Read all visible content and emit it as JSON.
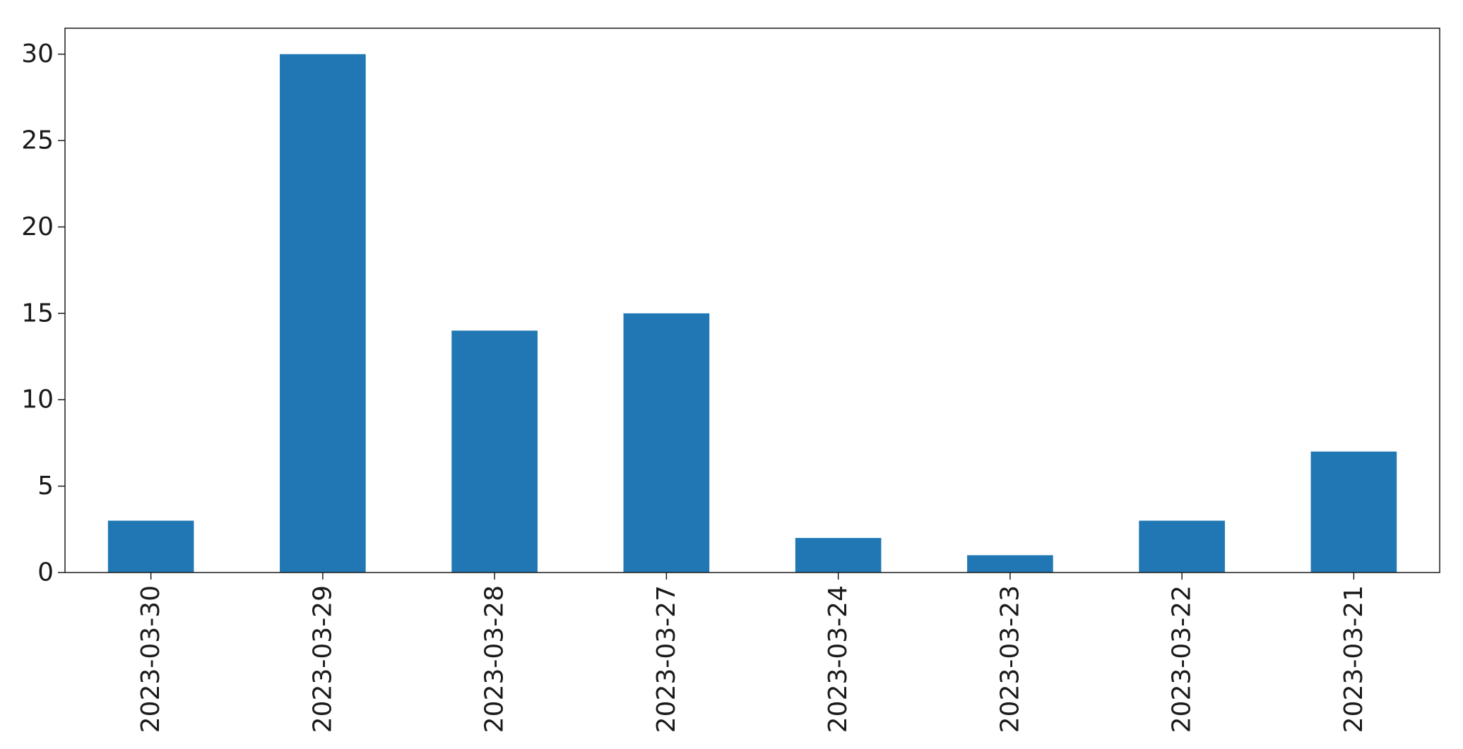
{
  "chart_data": {
    "type": "bar",
    "categories": [
      "2023-03-30",
      "2023-03-29",
      "2023-03-28",
      "2023-03-27",
      "2023-03-24",
      "2023-03-23",
      "2023-03-22",
      "2023-03-21"
    ],
    "series": [
      {
        "values": [
          3,
          30,
          14,
          15,
          2,
          1,
          3,
          7
        ],
        "color": "#2077b4"
      }
    ],
    "title": "",
    "xlabel": "",
    "ylabel": "",
    "ylim": [
      0,
      31.5
    ],
    "yticks": [
      0,
      5,
      10,
      15,
      20,
      25,
      30
    ],
    "grid": false,
    "legend": "none",
    "x_tick_rotation": "vertical"
  }
}
